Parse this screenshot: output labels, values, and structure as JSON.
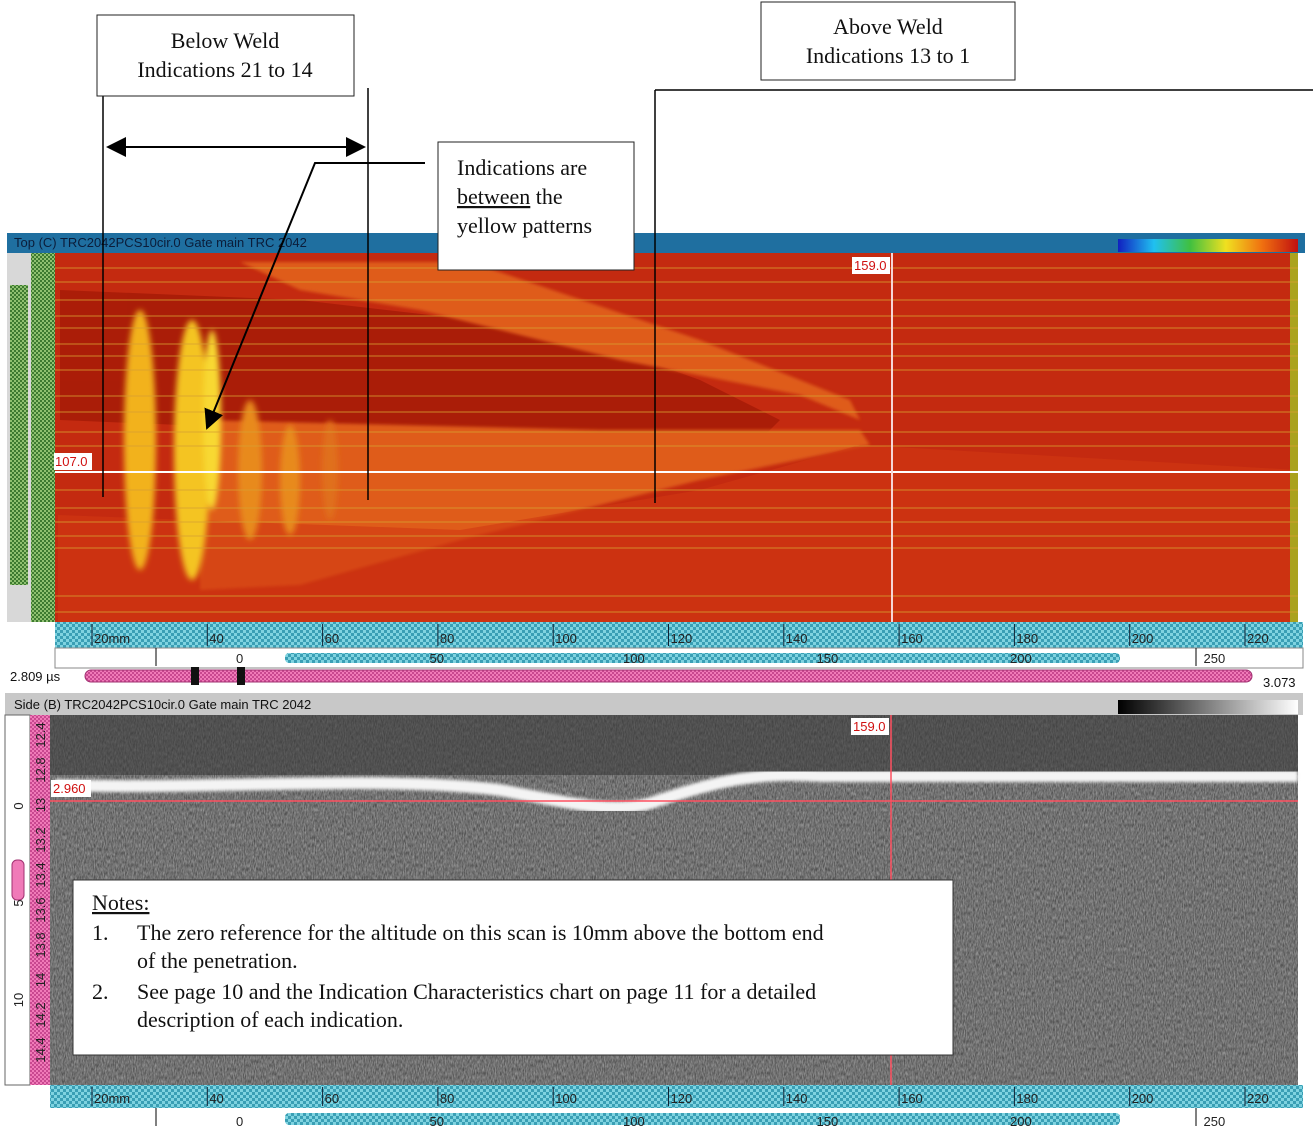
{
  "callouts": {
    "below_weld": [
      "Below Weld",
      "Indications 21 to 14"
    ],
    "above_weld": [
      "Above Weld",
      "Indications 13 to 1"
    ],
    "between": {
      "line1": "Indications are",
      "underlined": "between",
      "line2_rest": "the",
      "line3": "yellow patterns"
    }
  },
  "top_view": {
    "title": "Top (C) TRC2042PCS10cir.0 Gate main TRC 2042",
    "cursor_x_label": "159.0",
    "cursor_y_label": "107.0",
    "scale_ticks": [
      "20mm",
      "40",
      "60",
      "80",
      "100",
      "120",
      "140",
      "160",
      "180",
      "200",
      "220"
    ],
    "index_ticks": [
      "0",
      "50",
      "100",
      "150",
      "200",
      "250"
    ],
    "gate_start": "2.809 µs",
    "gate_end": "3.073"
  },
  "side_view": {
    "title": "Side (B) TRC2042PCS10cir.0 Gate main TRC 2042",
    "cursor_x_label": "159.0",
    "cursor_y_label": "2.960",
    "depth_ticks": [
      "12.4",
      "12.8",
      "13",
      "13.2",
      "13.4",
      "13.6",
      "13.8",
      "14",
      "14.2",
      "14.4"
    ],
    "altitude_ticks": [
      "0",
      "5",
      "10"
    ],
    "scale_ticks": [
      "20mm",
      "40",
      "60",
      "80",
      "100",
      "120",
      "140",
      "160",
      "180",
      "200",
      "220"
    ],
    "index_ticks": [
      "0",
      "50",
      "100",
      "150",
      "200",
      "250"
    ]
  },
  "notes": {
    "heading": "Notes:",
    "items": [
      {
        "number": "1.",
        "lines": [
          "The zero reference for the altitude on this scan is 10mm above the bottom end",
          "of the penetration."
        ]
      },
      {
        "number": "2.",
        "lines": [
          "See page 10 and the Indication Characteristics chart on page 11 for a detailed",
          "description of each indication."
        ]
      }
    ]
  }
}
